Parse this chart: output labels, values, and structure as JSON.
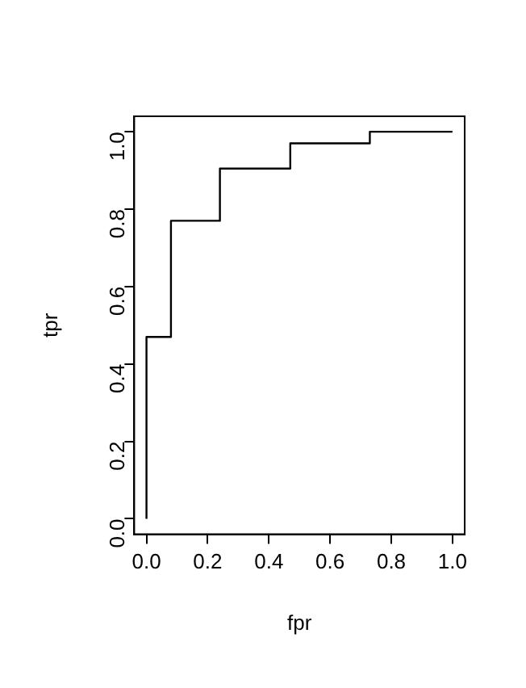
{
  "chart_data": {
    "type": "step",
    "xlabel": "fpr",
    "ylabel": "tpr",
    "x": [
      0,
      0,
      0.08,
      0.24,
      0.47,
      0.73,
      1.0
    ],
    "series": [
      {
        "color": "#000000",
        "values": [
          0,
          0.47,
          0.77,
          0.905,
          0.97,
          1.0,
          1.0
        ]
      }
    ],
    "xlim": [
      -0.04,
      1.04
    ],
    "ylim": [
      -0.04,
      1.04
    ],
    "xticks": [
      {
        "value": 0,
        "label": "0.0"
      },
      {
        "value": 0.2,
        "label": "0.2"
      },
      {
        "value": 0.4,
        "label": "0.4"
      },
      {
        "value": 0.6,
        "label": "0.6"
      },
      {
        "value": 0.8,
        "label": "0.8"
      },
      {
        "value": 1,
        "label": "1.0"
      }
    ],
    "yticks": [
      {
        "value": 0,
        "label": "0.0"
      },
      {
        "value": 0.2,
        "label": "0.2"
      },
      {
        "value": 0.4,
        "label": "0.4"
      },
      {
        "value": 0.6,
        "label": "0.6"
      },
      {
        "value": 0.8,
        "label": "0.8"
      },
      {
        "value": 1,
        "label": "1.0"
      }
    ],
    "grid": false,
    "legend": false,
    "marker": "none",
    "line_style": "solid"
  }
}
